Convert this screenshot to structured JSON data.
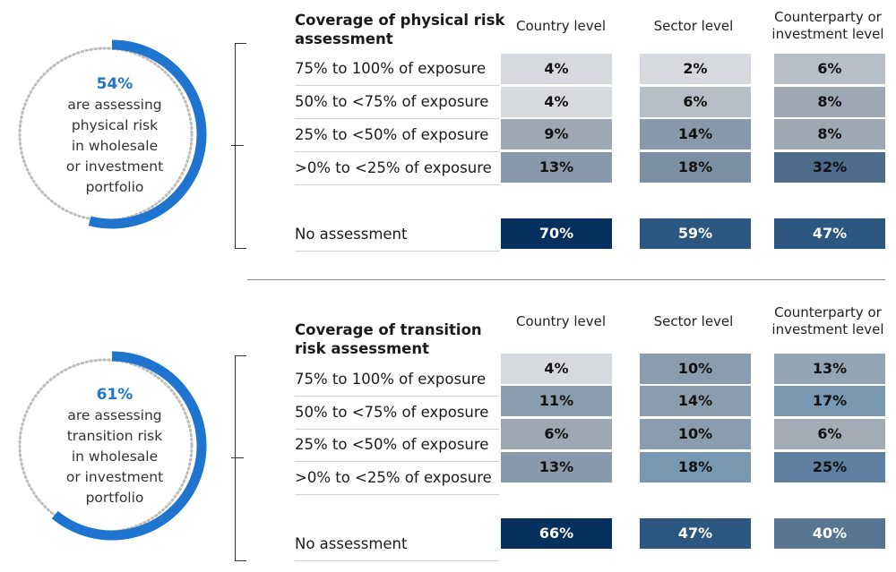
{
  "panels": [
    {
      "percent": "54%",
      "caption": [
        "are assessing",
        "physical risk",
        "in wholesale",
        "or investment",
        "portfolio"
      ],
      "ring_fraction": 0.54,
      "title": [
        "Coverage of physical risk",
        "assessment"
      ],
      "columns": [
        [
          "Country level"
        ],
        [
          "Sector level"
        ],
        [
          "Counterparty or",
          "investment level"
        ]
      ],
      "rows": [
        {
          "label": "75% to 100% of exposure",
          "values": [
            "4%",
            "2%",
            "6%"
          ]
        },
        {
          "label": "50% to <75% of exposure",
          "values": [
            "4%",
            "6%",
            "8%"
          ]
        },
        {
          "label": "25% to <50% of exposure",
          "values": [
            "9%",
            "14%",
            "8%"
          ]
        },
        {
          "label": ">0% to <25% of exposure",
          "values": [
            "13%",
            "18%",
            "32%"
          ]
        },
        {
          "label": "No assessment",
          "values": [
            "70%",
            "59%",
            "47%"
          ]
        }
      ]
    },
    {
      "percent": "61%",
      "caption": [
        "are assessing",
        "transition risk",
        "in wholesale",
        "or investment",
        "portfolio"
      ],
      "ring_fraction": 0.61,
      "title": [
        "Coverage of transition",
        "risk assessment"
      ],
      "columns": [
        [
          "Country level"
        ],
        [
          "Sector level"
        ],
        [
          "Counterparty or",
          "investment level"
        ]
      ],
      "rows": [
        {
          "label": "75% to 100% of exposure",
          "values": [
            "4%",
            "10%",
            "13%"
          ]
        },
        {
          "label": "50% to <75% of exposure",
          "values": [
            "11%",
            "14%",
            "17%"
          ]
        },
        {
          "label": "25% to <50% of exposure",
          "values": [
            "6%",
            "10%",
            "6%"
          ]
        },
        {
          "label": ">0% to <25% of exposure",
          "values": [
            "13%",
            "18%",
            "25%"
          ]
        },
        {
          "label": "No assessment",
          "values": [
            "66%",
            "47%",
            "40%"
          ]
        }
      ]
    }
  ],
  "colors": {
    "ring": "#1f74cf",
    "ring_dots": "#bdbdbd",
    "cells_panel1": [
      [
        "#d6d9de",
        "#d6d9de",
        "#b8bec8"
      ],
      [
        "#d6d9de",
        "#b8bec8",
        "#9ea8b5"
      ],
      [
        "#9ea8b5",
        "#8799aa",
        "#9ea8b5"
      ],
      [
        "#8799aa",
        "#7b8fa3",
        "#4e6b8c"
      ],
      [
        "#06315e",
        "#2b5780",
        "#2b5780"
      ]
    ],
    "cells_panel2": [
      [
        "#d6d9de",
        "#8a9dae",
        "#93a4b4"
      ],
      [
        "#8a9dae",
        "#8a9dae",
        "#7897b0"
      ],
      [
        "#9ea8b5",
        "#8a9dae",
        "#a3abb7"
      ],
      [
        "#8799aa",
        "#7897b0",
        "#5e7fa0"
      ],
      [
        "#06315e",
        "#2b5780",
        "#587592"
      ]
    ]
  },
  "chart_data": [
    {
      "type": "table",
      "title": "Coverage of physical risk assessment",
      "columns": [
        "Country level",
        "Sector level",
        "Counterparty or investment level"
      ],
      "rows": [
        "75% to 100% of exposure",
        "50% to <75% of exposure",
        "25% to <50% of exposure",
        ">0% to <25% of exposure",
        "No assessment"
      ],
      "values": [
        [
          4,
          2,
          6
        ],
        [
          4,
          6,
          8
        ],
        [
          9,
          14,
          8
        ],
        [
          13,
          18,
          32
        ],
        [
          70,
          59,
          47
        ]
      ],
      "summary": {
        "percent": 54,
        "text": "are assessing physical risk in wholesale or investment portfolio"
      }
    },
    {
      "type": "table",
      "title": "Coverage of transition risk assessment",
      "columns": [
        "Country level",
        "Sector level",
        "Counterparty or investment level"
      ],
      "rows": [
        "75% to 100% of exposure",
        "50% to <75% of exposure",
        "25% to <50% of exposure",
        ">0% to <25% of exposure",
        "No assessment"
      ],
      "values": [
        [
          4,
          10,
          13
        ],
        [
          11,
          14,
          17
        ],
        [
          6,
          10,
          6
        ],
        [
          13,
          18,
          25
        ],
        [
          66,
          47,
          40
        ]
      ],
      "summary": {
        "percent": 61,
        "text": "are assessing transition risk in wholesale or investment portfolio"
      }
    }
  ]
}
